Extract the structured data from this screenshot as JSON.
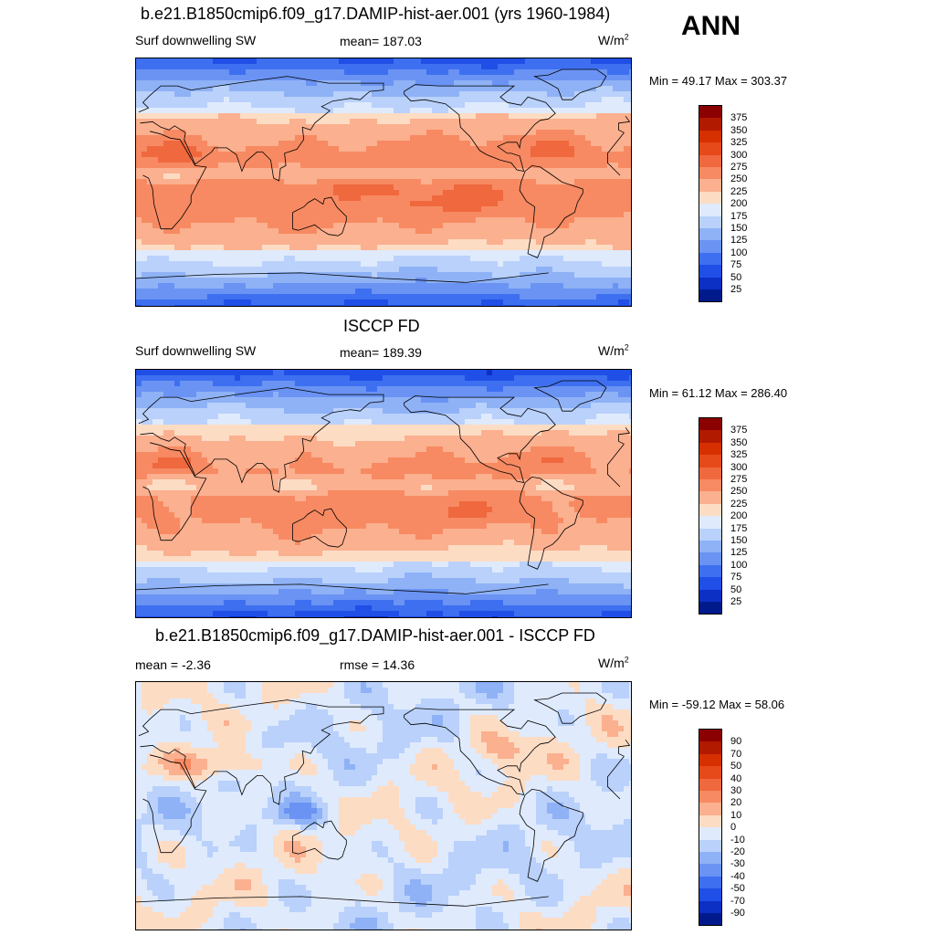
{
  "season": "ANN",
  "panels": [
    {
      "title": "b.e21.B1850cmip6.f09_g17.DAMIP-hist-aer.001 (yrs 1960-1984)",
      "left_text": "Surf downwelling SW",
      "center_text": "mean= 187.03",
      "unit_base": "W/m",
      "unit_exp": "2",
      "minmax": "Min =  49.17 Max = 303.37",
      "scheme": "abs"
    },
    {
      "title": "ISCCP FD",
      "left_text": "Surf downwelling SW",
      "center_text": "mean= 189.39",
      "unit_base": "W/m",
      "unit_exp": "2",
      "minmax": "Min =  61.12 Max = 286.40",
      "scheme": "abs2"
    },
    {
      "title": "b.e21.B1850cmip6.f09_g17.DAMIP-hist-aer.001 - ISCCP FD",
      "left_text": "mean =  -2.36",
      "center_text": "rmse =  14.36",
      "unit_base": "W/m",
      "unit_exp": "2",
      "minmax": "Min = -59.12 Max =  58.06",
      "scheme": "diff"
    }
  ],
  "colorbars": {
    "abs_labels": [
      "375",
      "350",
      "325",
      "300",
      "275",
      "250",
      "225",
      "200",
      "175",
      "150",
      "125",
      "100",
      "75",
      "50",
      "25"
    ],
    "abs_colors": [
      "#8b0000",
      "#b21a00",
      "#d63000",
      "#e6491a",
      "#f0683e",
      "#f78a62",
      "#fbb08f",
      "#fddcc4",
      "#dfeafc",
      "#b9d1fb",
      "#8fb2f6",
      "#6a93f3",
      "#3e6ff0",
      "#1f4fe6",
      "#0c2fc4",
      "#001a8c"
    ],
    "diff_labels": [
      "90",
      "70",
      "50",
      "40",
      "30",
      "20",
      "10",
      "0",
      "-10",
      "-20",
      "-30",
      "-40",
      "-50",
      "-70",
      "-90"
    ],
    "diff_colors": [
      "#8b0000",
      "#b21a00",
      "#d63000",
      "#e6491a",
      "#f0683e",
      "#f78a62",
      "#fbb08f",
      "#fddcc4",
      "#dfeafc",
      "#b9d1fb",
      "#8fb2f6",
      "#6a93f3",
      "#3e6ff0",
      "#1f4fe6",
      "#0c2fc4",
      "#001a8c"
    ]
  }
}
